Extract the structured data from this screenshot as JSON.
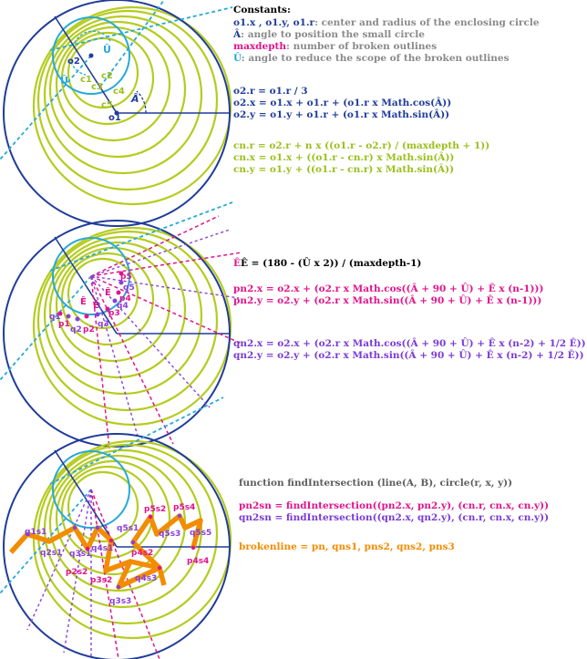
{
  "colors": {
    "outer_circle": "#1f3c9a",
    "green_circles": "#b5cc1e",
    "small_circle": "#27a9d8",
    "cyan_dash": "#27a9d8",
    "magenta": "#e0148c",
    "purple": "#8b3fd9",
    "orange": "#f28c00",
    "blue_text": "#1f3c9a",
    "grey_text": "#8a8a8a"
  },
  "panel1": {
    "labels": {
      "o1": "o1",
      "o2": "o2",
      "c1": "c1",
      "c2": "c2",
      "c3": "c3",
      "c4": "c4",
      "c5": "c5",
      "u_hat": "Û",
      "a_hat": "Â"
    },
    "constants_title": "Constants:",
    "constants": [
      {
        "key": "o1.x , o1.y, o1.r",
        "text": ": center and radius of  the enclosing circle"
      },
      {
        "key": "Â",
        "text": ": angle to position the small circle"
      },
      {
        "key": "maxdepth",
        "text": ": number of broken outlines"
      },
      {
        "key": "Û",
        "text": ": angle to reduce the scope of the broken outlines"
      }
    ],
    "eq_o2": [
      "o2.r = o1.r / 3",
      "o2.x = o1.x + o1.r + (o1.r x Math.cos(Â))",
      "o2.y = o1.y + o1.r + (o1.r x Math.sin(Â))"
    ],
    "eq_c": [
      "cn.r = o2.r + n x ((o1.r - o2.r) / (maxdepth + 1))",
      "cn.x = o1.x + ((o1.r - cn.r) x Math.sin(Â))",
      "cn.y = o1.y + ((o1.r - cn.r) x Math.sin(Â))"
    ]
  },
  "panel2": {
    "labels": {
      "p1": "p1",
      "p2": "p2",
      "p3": "p3",
      "p4": "p4",
      "p5": "p5",
      "q1": "q1",
      "q2": "q2",
      "q3": "q3",
      "q4": "q4",
      "q5": "q5",
      "e_hat": "Ê"
    },
    "eq_e": "Ê = (180 - (Û x 2)) / (maxdepth-1)",
    "eq_p": [
      "pn2.x = o2.x + (o2.r x Math.cos((Â + 90 + Û) + Ê x (n-1)))",
      "pn2.y = o2.y + (o2.r x Math.sin((Â + 90 + Û) + Ê x (n-1)))"
    ],
    "eq_q": [
      "qn2.x = o2.x + (o2.r x Math.cos((Â + 90 + Û) + Ê x (n-2) + 1/2 Ê))",
      "qn2.y = o2.y + (o2.r x Math.sin((Â + 90 + Û) + Ê x (n-2) + 1/2 Ê))"
    ]
  },
  "panel3": {
    "labels": {
      "q1s1": "q1s1",
      "q2s1": "q2s1",
      "q3s1": "q3s1",
      "q4s1": "q4s1",
      "q5s1": "q5s1",
      "p2s2": "p2s2",
      "p3s2": "p3s2",
      "p4s2": "p4s2",
      "p5s2": "p5s2",
      "q3s3": "q3s3",
      "q4s3": "q4s3",
      "q5s3": "q5s3",
      "p4s4": "p4s4",
      "p5s4": "p5s4",
      "q5s5": "q5s5"
    },
    "eq_func": "function findIntersection (line(A, B), circle(r, x, y))",
    "eq_ps": "pn2sn = findIntersection((pn2.x, pn2.y), (cn.r, cn.x, cn.y))",
    "eq_qs": "qn2sn = findIntersection((qn2.x, qn2.y), (cn.r, cn.x, cn.y))",
    "eq_broken": "brokenline = pn, qns1, pns2, qns2, pns3"
  }
}
